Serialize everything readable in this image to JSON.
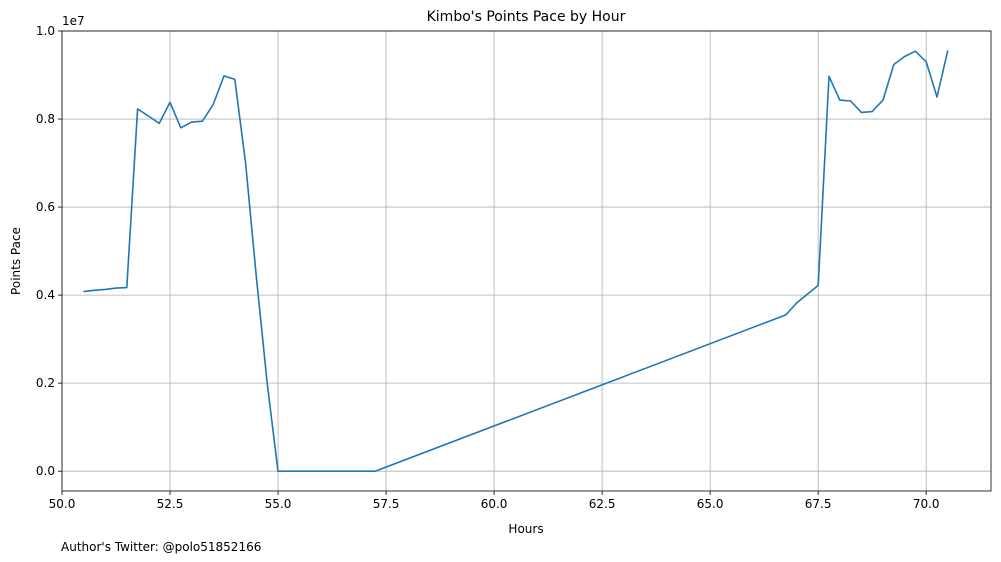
{
  "chart_data": {
    "type": "line",
    "title": "Kimbo's Points Pace by Hour",
    "xlabel": "Hours",
    "ylabel": "Points Pace",
    "y_offset_label": "1e7",
    "footnote": "Author's Twitter: @polo51852166",
    "xlim": [
      50.0,
      71.5
    ],
    "ylim": [
      -0.045,
      1.0
    ],
    "y_units": "1e7",
    "x_ticks": [
      50.0,
      52.5,
      55.0,
      57.5,
      60.0,
      62.5,
      65.0,
      67.5,
      70.0
    ],
    "x_tick_labels": [
      "50.0",
      "52.5",
      "55.0",
      "57.5",
      "60.0",
      "62.5",
      "65.0",
      "67.5",
      "70.0"
    ],
    "y_ticks": [
      0.0,
      0.2,
      0.4,
      0.6,
      0.8,
      1.0
    ],
    "y_tick_labels": [
      "0.0",
      "0.2",
      "0.4",
      "0.6",
      "0.8",
      "1.0"
    ],
    "grid": true,
    "line_color": "#1f77b4",
    "series": [
      {
        "x": [
          50.5,
          50.75,
          51.0,
          51.25,
          51.5,
          51.75,
          52.0,
          52.25,
          52.5,
          52.75,
          53.0,
          53.25,
          53.5,
          53.75,
          54.0,
          54.25,
          54.5,
          54.75,
          55.0,
          55.25,
          55.5,
          55.75,
          56.0,
          56.25,
          56.5,
          56.75,
          57.0,
          57.25,
          66.75,
          67.0,
          67.5,
          67.75,
          68.0,
          68.25,
          68.5,
          68.75,
          69.0,
          69.25,
          69.5,
          69.75,
          70.0,
          70.25,
          70.5
        ],
        "y": [
          0.408,
          0.411,
          0.413,
          0.416,
          0.417,
          0.823,
          0.807,
          0.79,
          0.838,
          0.78,
          0.793,
          0.795,
          0.833,
          0.898,
          0.89,
          0.7,
          0.44,
          0.2,
          0.0,
          0.0,
          0.0,
          0.0,
          0.0,
          0.0,
          0.0,
          0.0,
          0.0,
          0.0,
          0.355,
          0.382,
          0.422,
          0.897,
          0.843,
          0.841,
          0.815,
          0.817,
          0.843,
          0.924,
          0.942,
          0.954,
          0.93,
          0.85,
          0.956
        ]
      }
    ]
  }
}
